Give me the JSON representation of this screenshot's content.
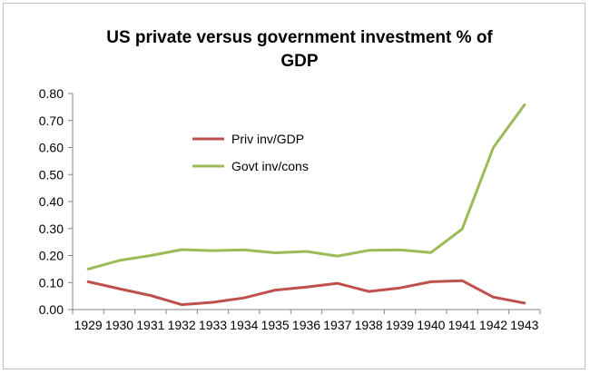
{
  "chart_data": {
    "type": "line",
    "title_lines": [
      "US private versus government investment % of",
      "GDP"
    ],
    "xlabel": "",
    "ylabel": "",
    "categories": [
      "1929",
      "1930",
      "1931",
      "1932",
      "1933",
      "1934",
      "1935",
      "1936",
      "1937",
      "1938",
      "1939",
      "1940",
      "1941",
      "1942",
      "1943"
    ],
    "ylim": [
      0,
      0.8
    ],
    "y_ticks": [
      "0.00",
      "0.10",
      "0.20",
      "0.30",
      "0.40",
      "0.50",
      "0.60",
      "0.70",
      "0.80"
    ],
    "grid": false,
    "legend_position": "center-left",
    "series": [
      {
        "name": "Priv inv/GDP",
        "color": "#c0504d",
        "values": [
          0.103,
          0.077,
          0.052,
          0.018,
          0.027,
          0.043,
          0.072,
          0.083,
          0.097,
          0.067,
          0.08,
          0.103,
          0.107,
          0.046,
          0.024
        ]
      },
      {
        "name": "Govt inv/cons",
        "color": "#9bbb59",
        "values": [
          0.15,
          0.182,
          0.2,
          0.222,
          0.218,
          0.221,
          0.21,
          0.215,
          0.198,
          0.219,
          0.221,
          0.211,
          0.298,
          0.6,
          0.758
        ]
      }
    ]
  }
}
